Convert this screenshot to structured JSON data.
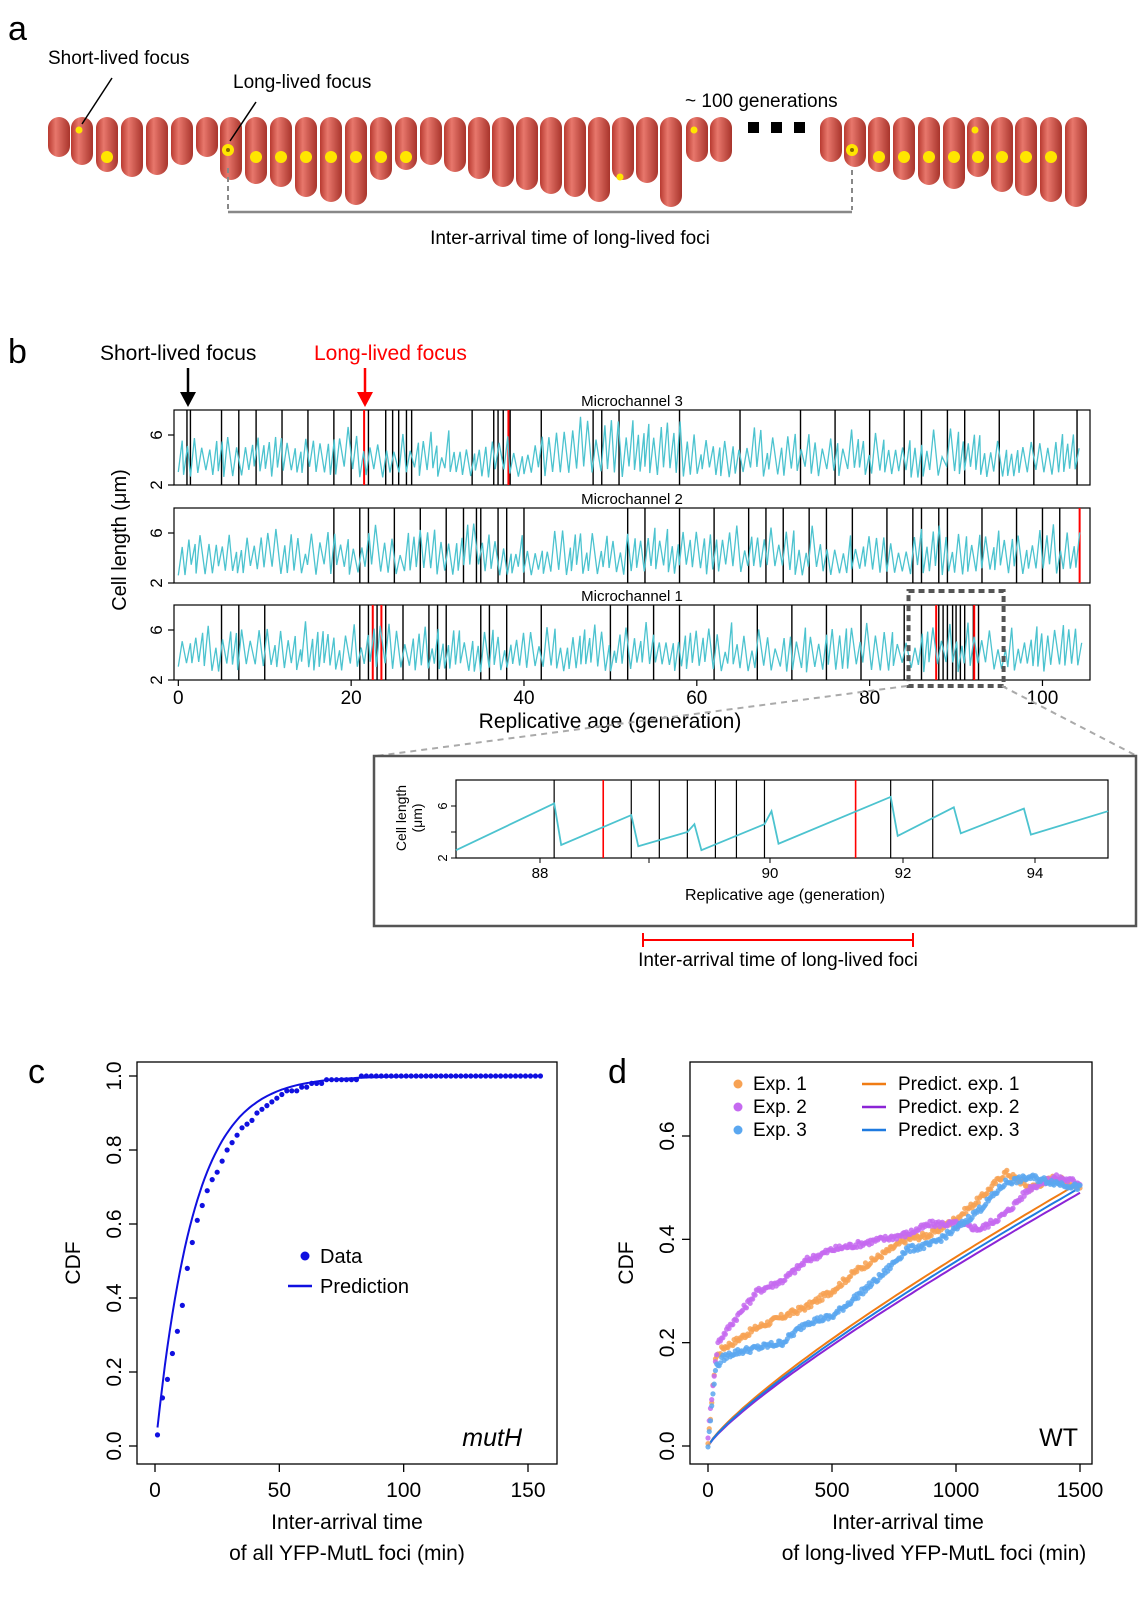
{
  "panel_labels": {
    "a": "a",
    "b": "b",
    "c": "c",
    "d": "d"
  },
  "colors": {
    "cell": "#d9544a",
    "focus": "#ffe600",
    "trace": "#4cc3cf",
    "division": "#000000",
    "long_lived": "#ff0000",
    "data_c": "#1010e0",
    "exp1": "#f7a254",
    "exp2": "#c56af0",
    "exp3": "#5aa7f0",
    "pred1": "#f07c14",
    "pred2": "#8b24d6",
    "pred3": "#1e7ae0",
    "guide": "#888888"
  },
  "panel_a": {
    "short_lived_label": "Short-lived focus",
    "long_lived_label": "Long-lived focus",
    "generations_label": "~ 100 generations",
    "inter_arrival_label": "Inter-arrival time of long-lived foci"
  },
  "panel_b": {
    "short_lived_label": "Short-lived focus",
    "long_lived_label": "Long-lived focus",
    "ylabel": "Cell length (μm)",
    "xlabel": "Replicative age (generation)",
    "inset_ylabel_1": "Cell length",
    "inset_ylabel_2": "(μm)",
    "inset_xlabel": "Replicative age (generation)",
    "inset_caption": "Inter-arrival time of long-lived foci",
    "y_ticks": [
      "2",
      "4",
      "6"
    ],
    "x_ticks": [
      "0",
      "20",
      "40",
      "60",
      "80",
      "100"
    ],
    "inset_y_ticks": [
      "2",
      "4",
      "6"
    ],
    "inset_x_ticks": [
      "88",
      "88",
      "90",
      "92",
      "94"
    ]
  },
  "chart_data": [
    {
      "type": "line",
      "id": "b-microchannels",
      "xlabel": "Replicative age (generation)",
      "ylabel": "Cell length (μm)",
      "xlim": [
        -0.5,
        105.5
      ],
      "ylim": [
        2,
        8
      ],
      "channels": [
        {
          "name": "Microchannel 3",
          "division_lines": [
            1,
            1.4,
            5,
            7,
            9,
            12,
            15,
            18,
            20,
            22,
            24,
            24.8,
            25.5,
            26.4,
            27,
            34,
            36.5,
            37,
            37.6,
            38.4,
            42,
            48,
            49,
            51,
            58,
            65,
            72,
            76,
            80,
            84,
            86,
            89,
            91,
            95,
            99,
            104
          ],
          "long_lived": [
            21.5,
            38.2
          ]
        },
        {
          "name": "Microchannel 2",
          "division_lines": [
            18,
            21,
            22,
            25,
            28,
            31,
            33,
            34.5,
            35,
            37,
            38,
            40,
            52,
            54,
            58,
            62,
            66,
            68,
            70,
            73,
            75,
            78,
            82,
            85,
            86,
            88,
            89,
            93,
            97,
            100,
            102
          ],
          "long_lived": [
            104.3
          ]
        },
        {
          "name": "Microchannel 1",
          "division_lines": [
            5,
            7,
            10,
            21,
            22,
            23,
            24,
            26,
            29,
            30,
            31,
            35,
            36,
            38,
            42,
            50,
            52,
            55,
            58,
            62,
            67,
            71,
            75,
            79,
            84,
            86,
            88,
            88.5,
            89,
            89.6,
            90,
            90.5,
            91,
            92,
            92.6
          ],
          "long_lived": [
            22.5,
            23.5,
            87.7,
            92.1
          ]
        }
      ],
      "zoom_box": [
        84.5,
        95.5
      ]
    },
    {
      "type": "line",
      "id": "b-inset",
      "xlabel": "Replicative age (generation)",
      "ylabel": "Cell length (μm)",
      "xlim": [
        86.4,
        95.7
      ],
      "ylim": [
        2,
        8
      ],
      "division_lines": [
        87.8,
        88.9,
        89.3,
        89.7,
        90.1,
        90.4,
        90.8,
        92.6,
        93.2
      ],
      "long_lived": [
        88.5,
        92.1
      ],
      "trace": [
        [
          86.4,
          2.6
        ],
        [
          87.8,
          6.2
        ],
        [
          87.9,
          3.0
        ],
        [
          88.9,
          5.3
        ],
        [
          89.0,
          2.9
        ],
        [
          89.7,
          4.0
        ],
        [
          89.8,
          4.6
        ],
        [
          89.9,
          2.6
        ],
        [
          90.8,
          4.6
        ],
        [
          90.9,
          5.6
        ],
        [
          91.0,
          3.1
        ],
        [
          92.6,
          6.7
        ],
        [
          92.7,
          3.7
        ],
        [
          93.5,
          5.9
        ],
        [
          93.6,
          3.9
        ],
        [
          94.5,
          5.8
        ],
        [
          94.6,
          3.8
        ],
        [
          95.7,
          5.6
        ]
      ]
    },
    {
      "type": "scatter",
      "id": "c",
      "xlabel_1": "Inter-arrival time",
      "xlabel_2": "of all YFP-MutL foci (min)",
      "ylabel": "CDF",
      "xlim": [
        0,
        155
      ],
      "ylim": [
        0,
        1.0
      ],
      "x_ticks": [
        "0",
        "50",
        "100",
        "150"
      ],
      "y_ticks": [
        "0.0",
        "0.2",
        "0.4",
        "0.6",
        "0.8",
        "1.0"
      ],
      "legend": [
        "Data",
        "Prediction"
      ],
      "annotation": "mutH",
      "series": [
        {
          "name": "Data",
          "x": [
            1,
            3,
            5,
            7,
            9,
            11,
            13,
            15,
            17,
            19,
            21,
            23,
            25,
            27,
            29,
            31,
            33,
            35,
            37,
            39,
            41,
            43,
            45,
            47,
            49,
            51,
            53,
            55,
            57,
            59,
            61,
            63,
            65,
            67,
            69,
            71,
            73,
            75,
            77,
            79,
            81,
            83,
            85,
            87,
            89,
            91,
            93,
            95,
            97,
            99,
            101,
            103,
            105,
            107,
            109,
            111,
            113,
            115,
            117,
            119,
            121,
            123,
            125,
            127,
            129,
            131,
            133,
            135,
            137,
            139,
            141,
            143,
            145,
            147,
            149,
            151,
            153,
            155
          ],
          "y": [
            0.03,
            0.13,
            0.18,
            0.25,
            0.31,
            0.38,
            0.48,
            0.55,
            0.61,
            0.65,
            0.69,
            0.72,
            0.74,
            0.77,
            0.8,
            0.82,
            0.84,
            0.86,
            0.87,
            0.88,
            0.9,
            0.91,
            0.92,
            0.93,
            0.94,
            0.95,
            0.96,
            0.96,
            0.96,
            0.97,
            0.97,
            0.98,
            0.98,
            0.98,
            0.99,
            0.99,
            0.99,
            0.99,
            0.99,
            0.99,
            0.99,
            1.0,
            1.0,
            1.0,
            1.0,
            1.0,
            1.0,
            1.0,
            1.0,
            1.0,
            1.0,
            1.0,
            1.0,
            1.0,
            1.0,
            1.0,
            1.0,
            1.0,
            1.0,
            1.0,
            1.0,
            1.0,
            1.0,
            1.0,
            1.0,
            1.0,
            1.0,
            1.0,
            1.0,
            1.0,
            1.0,
            1.0,
            1.0,
            1.0,
            1.0,
            1.0,
            1.0,
            1.0
          ]
        },
        {
          "name": "Prediction",
          "model": "exponential",
          "rate": 0.065,
          "offset": 0.05
        }
      ]
    },
    {
      "type": "scatter",
      "id": "d",
      "xlabel_1": "Inter-arrival time",
      "xlabel_2": "of long-lived YFP-MutL foci (min)",
      "ylabel": "CDF",
      "xlim": [
        0,
        1500
      ],
      "ylim": [
        0,
        0.7
      ],
      "x_ticks": [
        "0",
        "500",
        "1000",
        "1500"
      ],
      "y_ticks": [
        "0.0",
        "0.2",
        "0.4",
        "0.6"
      ],
      "annotation": "WT",
      "legend": [
        "Exp. 1",
        "Exp. 2",
        "Exp. 3",
        "Predict. exp. 1",
        "Predict. exp. 2",
        "Predict. exp. 3"
      ],
      "series": [
        {
          "name": "Exp. 1",
          "x": [
            0,
            30,
            60,
            100,
            200,
            300,
            400,
            500,
            600,
            700,
            800,
            900,
            1000,
            1100,
            1200,
            1300,
            1400,
            1500
          ],
          "y": [
            0.0,
            0.17,
            0.19,
            0.2,
            0.23,
            0.25,
            0.27,
            0.3,
            0.34,
            0.37,
            0.4,
            0.41,
            0.44,
            0.48,
            0.53,
            0.5,
            0.52,
            0.5
          ]
        },
        {
          "name": "Exp. 2",
          "x": [
            0,
            20,
            40,
            100,
            200,
            300,
            400,
            500,
            600,
            700,
            800,
            900,
            1000,
            1100,
            1200,
            1300,
            1400,
            1500
          ],
          "y": [
            0.02,
            0.12,
            0.2,
            0.24,
            0.3,
            0.32,
            0.36,
            0.38,
            0.39,
            0.4,
            0.41,
            0.43,
            0.43,
            0.42,
            0.45,
            0.5,
            0.52,
            0.51
          ]
        },
        {
          "name": "Exp. 3",
          "x": [
            0,
            30,
            60,
            100,
            200,
            300,
            400,
            500,
            600,
            700,
            800,
            900,
            1000,
            1100,
            1200,
            1300,
            1400,
            1500
          ],
          "y": [
            0.0,
            0.15,
            0.17,
            0.18,
            0.19,
            0.2,
            0.24,
            0.25,
            0.29,
            0.33,
            0.38,
            0.39,
            0.42,
            0.46,
            0.51,
            0.52,
            0.51,
            0.5
          ]
        },
        {
          "name": "Predict. exp. 1",
          "x_end": 1500,
          "y_end": 0.51,
          "exponent": 0.82
        },
        {
          "name": "Predict. exp. 2",
          "x_end": 1500,
          "y_end": 0.49,
          "exponent": 0.84
        },
        {
          "name": "Predict. exp. 3",
          "x_end": 1500,
          "y_end": 0.5,
          "exponent": 0.83
        }
      ]
    }
  ]
}
